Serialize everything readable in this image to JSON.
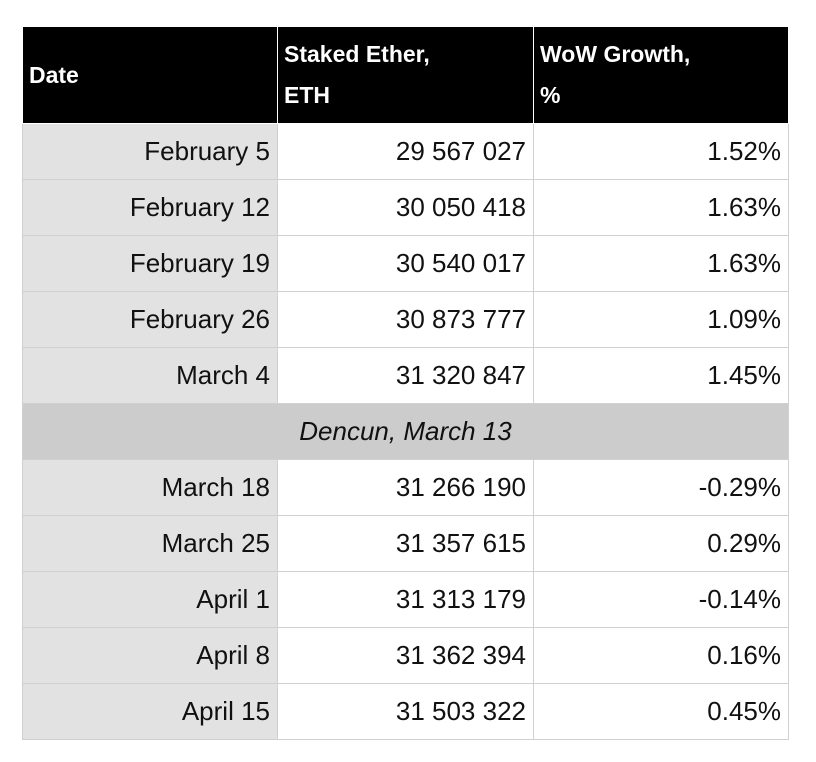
{
  "table": {
    "headers": [
      "Date",
      "Staked Ether, ETH",
      "WoW Growth, %"
    ],
    "rows": [
      [
        "February 5",
        "29 567 027",
        "1.52%"
      ],
      [
        "February 12",
        "30 050 418",
        "1.63%"
      ],
      [
        "February 19",
        "30 540 017",
        "1.63%"
      ],
      [
        "February 26",
        "30 873 777",
        "1.09%"
      ],
      [
        "March 4",
        "31 320 847",
        "1.45%"
      ],
      [
        "Dencun, March 13"
      ],
      [
        "March 18",
        "31 266 190",
        "-0.29%"
      ],
      [
        "March 25",
        "31 357 615",
        "0.29%"
      ],
      [
        "April 1",
        "31 313 179",
        "-0.14%"
      ],
      [
        "April 8",
        "31 362 394",
        "0.16%"
      ],
      [
        "April 15",
        "31 503 322",
        "0.45%"
      ]
    ]
  }
}
